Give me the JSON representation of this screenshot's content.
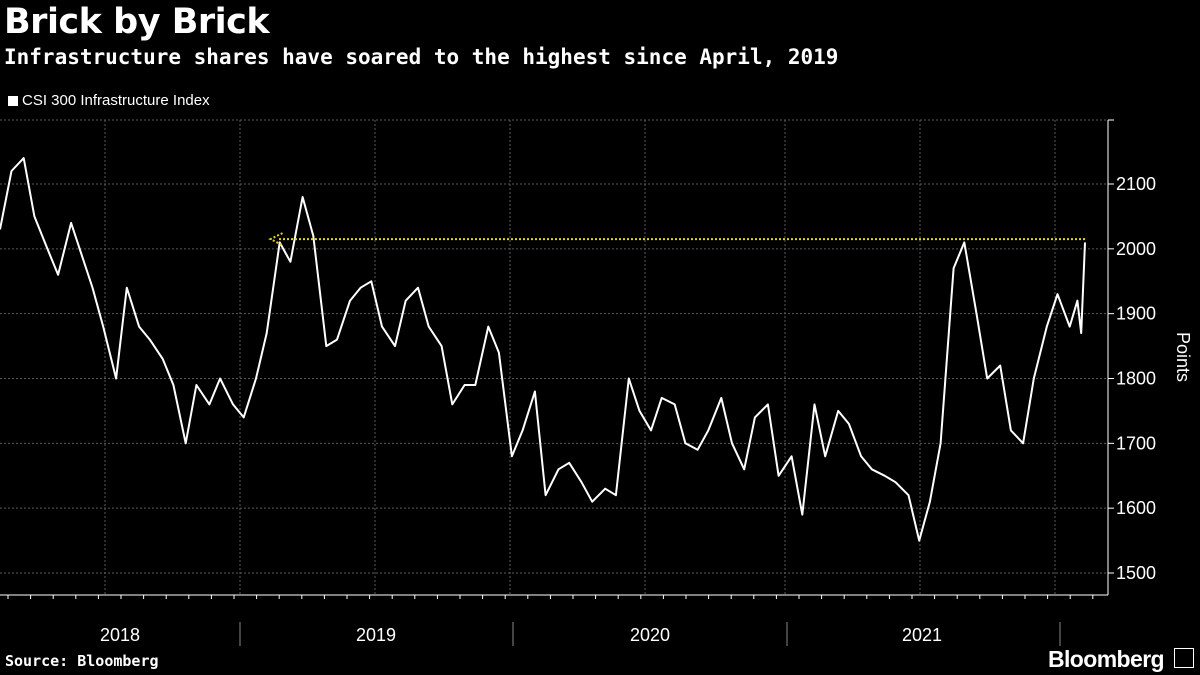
{
  "title": "Brick by Brick",
  "subtitle": "Infrastructure shares have soared to the highest since April, 2019",
  "source": "Source: Bloomberg",
  "brand": "Bloomberg",
  "colors": {
    "background": "#000000",
    "line": "#ffffff",
    "grid": "#5a5a5a",
    "annotation": "#e6d31d"
  },
  "chart_data": {
    "type": "line",
    "legend": "top-left",
    "series": [
      {
        "name": "CSI 300 Infrastructure Index",
        "x": [
          "2017-10-31",
          "2017-11-15",
          "2017-12-01",
          "2017-12-15",
          "2018-01-01",
          "2018-01-15",
          "2018-02-01",
          "2018-02-15",
          "2018-03-01",
          "2018-03-15",
          "2018-04-01",
          "2018-04-15",
          "2018-05-01",
          "2018-05-15",
          "2018-06-01",
          "2018-06-15",
          "2018-07-01",
          "2018-07-15",
          "2018-08-01",
          "2018-08-15",
          "2018-09-01",
          "2018-09-15",
          "2018-10-01",
          "2018-10-15",
          "2018-11-01",
          "2018-11-15",
          "2018-12-01",
          "2018-12-15",
          "2019-01-01",
          "2019-01-15",
          "2019-02-01",
          "2019-02-15",
          "2019-03-01",
          "2019-03-15",
          "2019-04-01",
          "2019-04-15",
          "2019-05-01",
          "2019-05-15",
          "2019-06-01",
          "2019-06-15",
          "2019-07-01",
          "2019-07-15",
          "2019-08-01",
          "2019-08-15",
          "2019-09-01",
          "2019-09-15",
          "2019-10-01",
          "2019-10-15",
          "2019-11-01",
          "2019-11-15",
          "2019-12-01",
          "2019-12-15",
          "2020-01-01",
          "2020-01-15",
          "2020-02-01",
          "2020-02-15",
          "2020-03-01",
          "2020-03-15",
          "2020-04-01",
          "2020-04-15",
          "2020-05-01",
          "2020-05-15",
          "2020-06-01",
          "2020-06-15",
          "2020-07-01",
          "2020-07-15",
          "2020-08-01",
          "2020-08-15",
          "2020-09-01",
          "2020-09-15",
          "2020-10-01",
          "2020-10-15",
          "2020-11-01",
          "2020-11-15",
          "2020-12-01",
          "2020-12-15",
          "2021-01-01",
          "2021-01-15",
          "2021-02-01",
          "2021-02-15",
          "2021-03-01",
          "2021-03-15",
          "2021-04-01",
          "2021-04-15",
          "2021-05-01",
          "2021-05-15",
          "2021-06-01",
          "2021-06-15",
          "2021-07-01",
          "2021-07-15",
          "2021-08-01",
          "2021-08-15",
          "2021-08-31",
          "2021-09-10",
          "2021-09-15",
          "2021-09-20"
        ],
        "values": [
          2030,
          2120,
          2140,
          2050,
          2000,
          1960,
          2040,
          1990,
          1940,
          1880,
          1800,
          1940,
          1880,
          1860,
          1830,
          1790,
          1700,
          1790,
          1760,
          1800,
          1760,
          1740,
          1800,
          1870,
          2010,
          1980,
          2080,
          2020,
          1850,
          1860,
          1920,
          1940,
          1950,
          1880,
          1850,
          1920,
          1940,
          1880,
          1850,
          1760,
          1790,
          1790,
          1880,
          1840,
          1680,
          1720,
          1780,
          1620,
          1660,
          1670,
          1640,
          1610,
          1630,
          1620,
          1800,
          1750,
          1720,
          1770,
          1760,
          1700,
          1690,
          1720,
          1770,
          1700,
          1660,
          1740,
          1760,
          1650,
          1680,
          1590,
          1760,
          1680,
          1750,
          1730,
          1680,
          1660,
          1650,
          1640,
          1620,
          1550,
          1610,
          1700,
          1970,
          2010,
          1900,
          1800,
          1820,
          1720,
          1700,
          1800,
          1880,
          1930,
          1880,
          1920,
          1870,
          2010
        ]
      }
    ],
    "x_ticks": [
      "2018",
      "2019",
      "2020",
      "2021"
    ],
    "y_ticks": [
      1500,
      1600,
      1700,
      1800,
      1900,
      2000,
      2100
    ],
    "ylim": [
      1480,
      2200
    ],
    "ylabel": "Points",
    "grid": true,
    "annotation": {
      "type": "arrow",
      "from_date": "2021-09-20",
      "to_date": "2018-10-20",
      "value": 2015
    }
  }
}
